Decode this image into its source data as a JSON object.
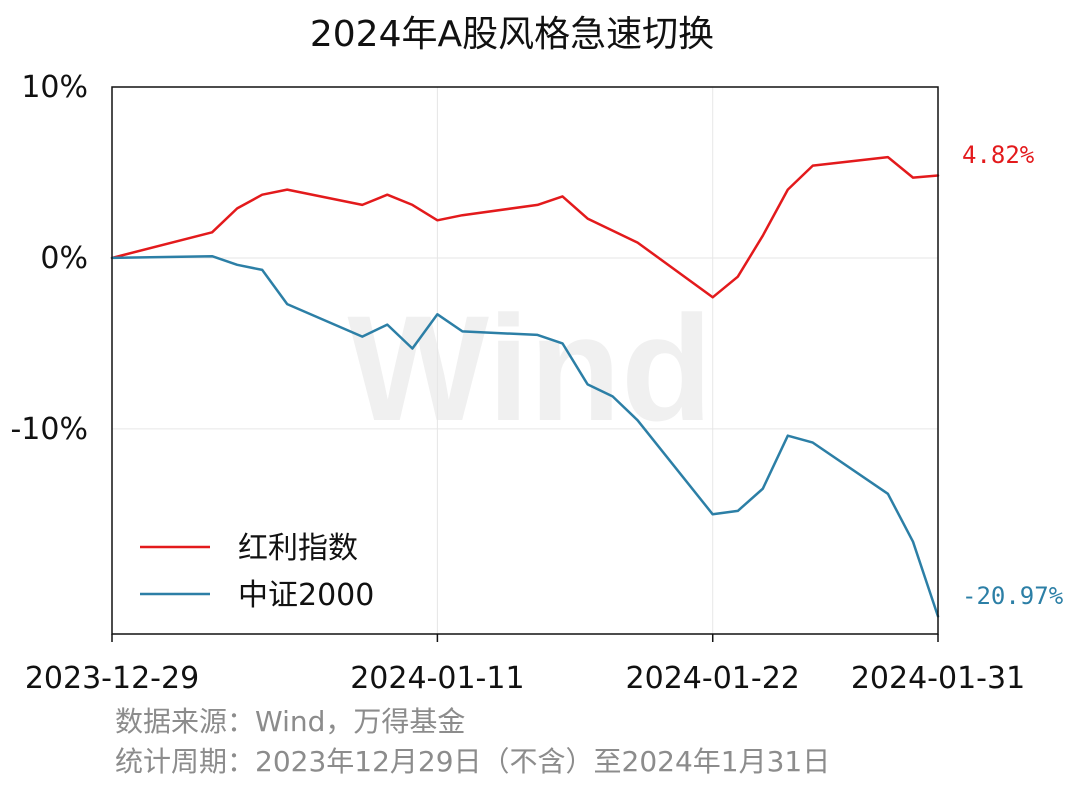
{
  "colors": {
    "dividend": "#e31a1c",
    "csi2000": "#2c7fa6",
    "grid": "#e6e6e6",
    "frame": "#111111",
    "footer": "#8c8c8c",
    "watermark": "#f0f0f0"
  },
  "watermark": "Wind",
  "chart_data": {
    "type": "line",
    "title": "2024年A股风格急速切换",
    "xlabel": "",
    "ylabel": "",
    "x_ticks": [
      "2023-12-29",
      "2024-01-11",
      "2024-01-22",
      "2024-01-31"
    ],
    "y_ticks": [
      "10%",
      "0%",
      "-10%"
    ],
    "ylim": [
      -22,
      10
    ],
    "y_tick_values": [
      10,
      0,
      -10
    ],
    "grid": true,
    "legend_position": "lower-left",
    "x": [
      "2023-12-29",
      "2024-01-02",
      "2024-01-03",
      "2024-01-04",
      "2024-01-05",
      "2024-01-08",
      "2024-01-09",
      "2024-01-10",
      "2024-01-11",
      "2024-01-12",
      "2024-01-15",
      "2024-01-16",
      "2024-01-17",
      "2024-01-18",
      "2024-01-19",
      "2024-01-22",
      "2024-01-23",
      "2024-01-24",
      "2024-01-25",
      "2024-01-26",
      "2024-01-29",
      "2024-01-30",
      "2024-01-31"
    ],
    "series": [
      {
        "name": "红利指数",
        "color_key": "dividend",
        "end_label": "4.82%",
        "values": [
          0,
          1.5,
          2.9,
          3.7,
          4.0,
          3.1,
          3.7,
          3.1,
          2.2,
          2.5,
          3.1,
          3.6,
          2.3,
          1.6,
          0.9,
          -2.3,
          -1.1,
          1.3,
          4.0,
          5.4,
          5.9,
          4.7,
          4.82
        ]
      },
      {
        "name": "中证2000",
        "color_key": "csi2000",
        "end_label": "-20.97%",
        "values": [
          0,
          0.1,
          -0.4,
          -0.7,
          -2.7,
          -4.6,
          -3.9,
          -5.3,
          -3.3,
          -4.3,
          -4.5,
          -5.0,
          -7.4,
          -8.1,
          -9.5,
          -15.0,
          -14.8,
          -13.5,
          -10.4,
          -10.8,
          -13.8,
          -16.6,
          -20.97
        ]
      }
    ]
  },
  "footer": {
    "source": "数据来源：Wind，万得基金",
    "period": "统计周期：2023年12月29日（不含）至2024年1月31日"
  }
}
